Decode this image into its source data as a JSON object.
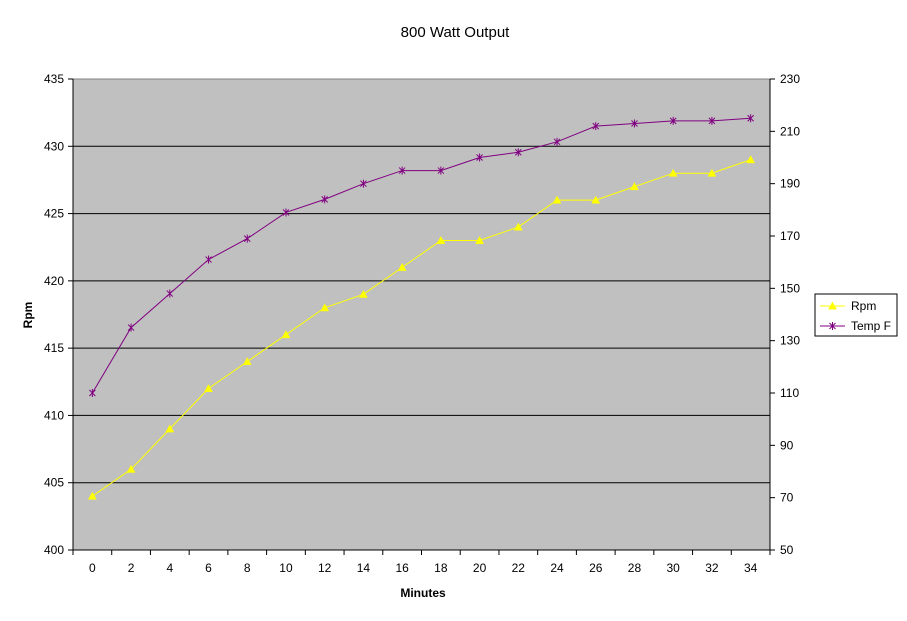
{
  "chart_data": {
    "type": "line",
    "title": "800 Watt Output",
    "xlabel": "Minutes",
    "ylabel": "Rpm",
    "y2label": "",
    "x": [
      0,
      2,
      4,
      6,
      8,
      10,
      12,
      14,
      16,
      18,
      20,
      22,
      24,
      26,
      28,
      30,
      32,
      34
    ],
    "ylim": [
      400,
      435
    ],
    "yticks": [
      400,
      405,
      410,
      415,
      420,
      425,
      430,
      435
    ],
    "y2lim": [
      50,
      230
    ],
    "y2ticks": [
      50,
      70,
      90,
      110,
      130,
      150,
      170,
      190,
      210,
      230
    ],
    "grid": true,
    "legend_position": "right",
    "plot_background": "#C0C0C0",
    "series": [
      {
        "name": "Rpm",
        "axis": "left",
        "color": "#FFFF00",
        "marker": "triangle",
        "values": [
          404,
          406,
          409,
          412,
          414,
          416,
          418,
          419,
          421,
          423,
          423,
          424,
          426,
          426,
          427,
          428,
          428,
          429
        ]
      },
      {
        "name": "Temp F",
        "axis": "right",
        "color": "#800080",
        "marker": "star",
        "values": [
          110,
          135,
          148,
          161,
          169,
          179,
          184,
          190,
          195,
          195,
          200,
          202,
          206,
          212,
          213,
          214,
          214,
          215
        ]
      }
    ]
  }
}
